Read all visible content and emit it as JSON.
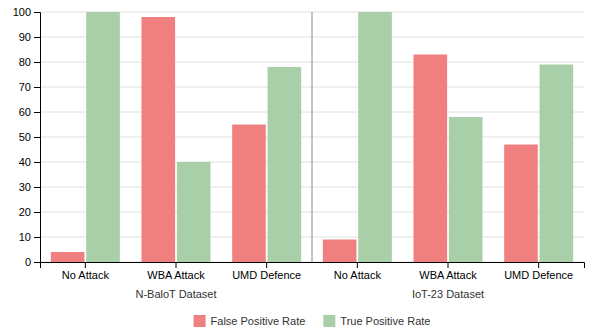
{
  "chart_data": {
    "type": "bar",
    "categories": [
      "No Attack",
      "WBA Attack",
      "UMD Defence",
      "No Attack",
      "WBA Attack",
      "UMD Defence"
    ],
    "series": [
      {
        "name": "False Positive Rate",
        "color": "#F08080",
        "values": [
          4,
          98,
          55,
          9,
          83,
          47
        ]
      },
      {
        "name": "True Positive Rate",
        "color": "#A8CFA8",
        "values": [
          100,
          40,
          78,
          100,
          58,
          79
        ]
      }
    ],
    "annotations": [
      "N-BaloT Dataset",
      "IoT-23 Dataset"
    ],
    "ylim": [
      0,
      100
    ],
    "yticks": [
      0,
      10,
      20,
      30,
      40,
      50,
      60,
      70,
      80,
      90,
      100
    ],
    "grid": true,
    "legend": "bottom"
  }
}
